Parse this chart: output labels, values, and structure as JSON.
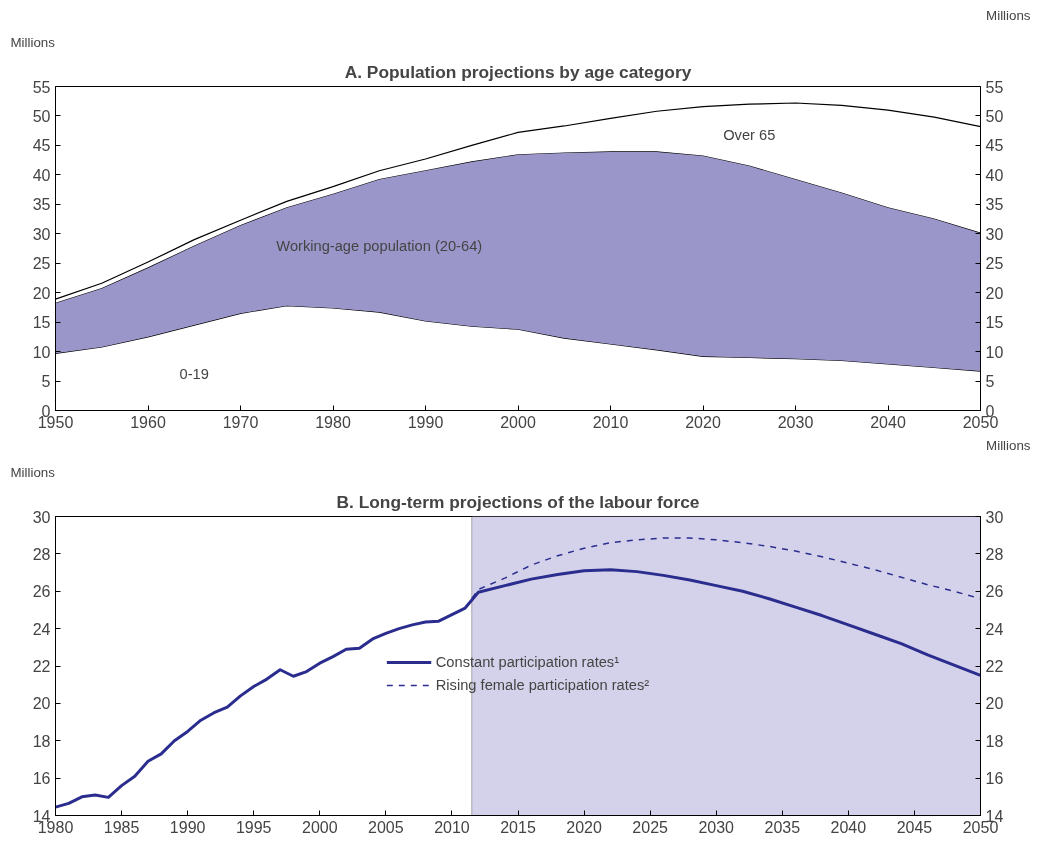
{
  "chart_data": [
    {
      "type": "area",
      "title": "A. Population projections by age category",
      "ylabel": "Millions",
      "y2label": "Millions",
      "stacked": true,
      "x": [
        1950,
        1955,
        1960,
        1965,
        1970,
        1975,
        1980,
        1985,
        1990,
        1995,
        2000,
        2005,
        2010,
        2015,
        2020,
        2025,
        2030,
        2035,
        2040,
        2045,
        2050
      ],
      "series": [
        {
          "name": "0-19",
          "color": "#ffffff",
          "values": [
            9.7,
            10.8,
            12.5,
            14.5,
            16.5,
            17.8,
            17.4,
            16.7,
            15.2,
            14.3,
            13.8,
            12.3,
            11.3,
            10.3,
            9.2,
            9.0,
            8.8,
            8.5,
            7.9,
            7.3,
            6.7
          ]
        },
        {
          "name": "Working-age population (20-64)",
          "color": "#9b96c9",
          "values": [
            8.6,
            10.0,
            11.8,
            13.5,
            15.0,
            16.7,
            19.4,
            22.6,
            25.6,
            28.0,
            29.7,
            31.5,
            32.7,
            33.7,
            34.1,
            32.6,
            30.5,
            28.5,
            26.6,
            25.3,
            23.5
          ]
        },
        {
          "name": "Over 65",
          "color": "#ffffff",
          "values": [
            0.6,
            0.8,
            0.9,
            1.0,
            0.8,
            1.0,
            1.2,
            1.4,
            1.9,
            2.7,
            3.7,
            4.5,
            5.6,
            6.8,
            8.3,
            10.4,
            12.9,
            14.8,
            16.5,
            17.2,
            18.0
          ]
        }
      ],
      "xlim": [
        1950,
        2050
      ],
      "xticks": [
        1950,
        1960,
        1970,
        1980,
        1990,
        2000,
        2010,
        2020,
        2030,
        2040,
        2050
      ],
      "ylim": [
        0,
        55
      ],
      "yticks": [
        0,
        5,
        10,
        15,
        20,
        25,
        30,
        35,
        40,
        45,
        50,
        55
      ],
      "y2lim": [
        0,
        55
      ],
      "y2ticks": [
        0,
        5,
        10,
        15,
        20,
        25,
        30,
        35,
        40,
        45,
        50,
        55
      ],
      "grid": false,
      "legend": false
    },
    {
      "type": "line",
      "title": "B. Long-term projections of the labour force",
      "ylabel": "Millions",
      "y2label": "Millions",
      "series": [
        {
          "name": "Constant participation rates¹",
          "color": "#2b2d8e",
          "line_style": "solid",
          "x": [
            1980,
            1981,
            1982,
            1983,
            1984,
            1985,
            1986,
            1987,
            1988,
            1989,
            1990,
            1991,
            1992,
            1993,
            1994,
            1995,
            1996,
            1997,
            1998,
            1999,
            2000,
            2001,
            2002,
            2003,
            2004,
            2005,
            2006,
            2007,
            2008,
            2009,
            2010,
            2011,
            2012,
            2014,
            2016,
            2018,
            2020,
            2022,
            2024,
            2026,
            2028,
            2030,
            2032,
            2034,
            2036,
            2038,
            2040,
            2042,
            2044,
            2046,
            2048,
            2050
          ],
          "values": [
            14.45,
            14.65,
            15.0,
            15.1,
            14.97,
            15.6,
            16.1,
            16.9,
            17.3,
            18.0,
            18.5,
            19.1,
            19.5,
            19.8,
            20.4,
            20.9,
            21.3,
            21.8,
            21.45,
            21.7,
            22.15,
            22.5,
            22.9,
            22.95,
            23.45,
            23.75,
            24.0,
            24.2,
            24.35,
            24.4,
            24.75,
            25.1,
            25.95,
            26.3,
            26.65,
            26.9,
            27.1,
            27.15,
            27.05,
            26.85,
            26.6,
            26.3,
            26.0,
            25.6,
            25.15,
            24.7,
            24.2,
            23.7,
            23.2,
            22.6,
            22.05,
            21.5
          ]
        },
        {
          "name": "Rising female participation rates²",
          "color": "#2b2d8e",
          "line_style": "dashed",
          "x": [
            2011,
            2012,
            2014,
            2016,
            2018,
            2020,
            2022,
            2024,
            2026,
            2028,
            2030,
            2032,
            2034,
            2036,
            2038,
            2040,
            2042,
            2044,
            2046,
            2048,
            2050
          ],
          "values": [
            25.1,
            26.1,
            26.7,
            27.4,
            27.9,
            28.3,
            28.6,
            28.75,
            28.85,
            28.85,
            28.75,
            28.6,
            28.4,
            28.15,
            27.85,
            27.5,
            27.15,
            26.75,
            26.35,
            26.0,
            25.6
          ]
        }
      ],
      "bands": [
        {
          "axis": "x",
          "from": 2011.5,
          "to": 2050,
          "color": "#d4d2ea"
        }
      ],
      "xlim": [
        1980,
        2050
      ],
      "xticks": [
        1980,
        1985,
        1990,
        1995,
        2000,
        2005,
        2010,
        2015,
        2020,
        2025,
        2030,
        2035,
        2040,
        2045,
        2050
      ],
      "ylim": [
        14,
        30
      ],
      "yticks": [
        14,
        16,
        18,
        20,
        22,
        24,
        26,
        28,
        30
      ],
      "y2lim": [
        14,
        30
      ],
      "y2ticks": [
        14,
        16,
        18,
        20,
        22,
        24,
        26,
        28,
        30
      ],
      "grid": false,
      "legend": "bottom"
    }
  ]
}
